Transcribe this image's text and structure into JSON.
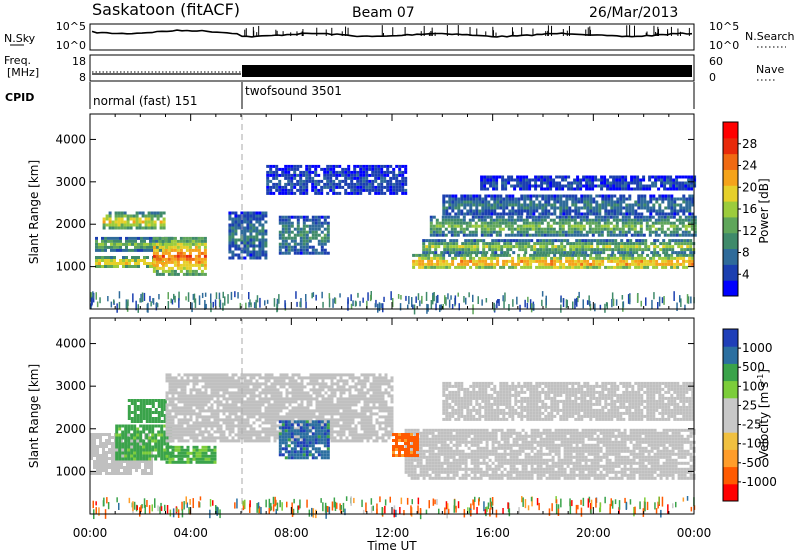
{
  "header": {
    "station": "Saskatoon (fitACF)",
    "beam": "Beam 07",
    "date": "26/Mar/2013"
  },
  "noise_panel": {
    "left_label": "N.Sky",
    "right_label": "N.Search",
    "left_ticks": [
      "10^5",
      "10^0"
    ],
    "right_ticks": [
      "10^5",
      "10^0"
    ]
  },
  "freq_panel": {
    "left_label_1": "Freq.",
    "left_label_2": "[MHz]",
    "left_ticks": [
      "18",
      "8"
    ],
    "right_label": "Nave",
    "right_ticks": [
      "60",
      "0"
    ]
  },
  "cpid_panel": {
    "label": "CPID",
    "modes": [
      {
        "name": "normal (fast) 151",
        "start_hour": 0,
        "end_hour": 6
      },
      {
        "name": "twofsound 3501",
        "start_hour": 6,
        "end_hour": 24
      }
    ]
  },
  "colors": {
    "power_scale": [
      "#0000ff",
      "#1b3fb0",
      "#2f6b9a",
      "#3f8a6a",
      "#5fa65a",
      "#9ccc3c",
      "#e6d02a",
      "#f5a31a",
      "#f06a12",
      "#e82a0a",
      "#ff0000"
    ],
    "velocity_scale": [
      "#ff0000",
      "#ff5a00",
      "#ff9d2a",
      "#f0c040",
      "#c8c8c8",
      "#c8c8c8",
      "#7ccd3a",
      "#3aa34a",
      "#2b6fa0",
      "#1f3fb8"
    ],
    "ground_scatter": "#c0c0c0"
  },
  "chart_data": [
    {
      "type": "heatmap",
      "name": "power",
      "ylabel": "Slant Range [km]",
      "yticks": [
        "1000",
        "2000",
        "3000",
        "4000"
      ],
      "ylim": [
        0,
        4600
      ],
      "xlim": [
        0,
        24
      ],
      "colorbar_label": "Power [dB]",
      "colorbar_ticks": [
        "4",
        "8",
        "12",
        "16",
        "20",
        "24",
        "28"
      ],
      "colorbar_range": [
        0,
        32
      ],
      "features": [
        {
          "t0": 0.2,
          "t1": 3.0,
          "r0": 1000,
          "r1": 1250,
          "value": 24
        },
        {
          "t0": 0.2,
          "t1": 3.2,
          "r0": 1400,
          "r1": 1700,
          "value": 16
        },
        {
          "t0": 0.5,
          "t1": 3.0,
          "r0": 1900,
          "r1": 2300,
          "value": 22
        },
        {
          "t0": 2.5,
          "t1": 4.6,
          "r0": 850,
          "r1": 1700,
          "value": 28
        },
        {
          "t0": 5.5,
          "t1": 7.0,
          "r0": 1200,
          "r1": 2300,
          "value": 10
        },
        {
          "t0": 7.0,
          "t1": 12.5,
          "r0": 2700,
          "r1": 3400,
          "value": 6
        },
        {
          "t0": 7.5,
          "t1": 9.5,
          "r0": 1300,
          "r1": 2200,
          "value": 12
        },
        {
          "t0": 12.8,
          "t1": 24.0,
          "r0": 950,
          "r1": 1300,
          "value": 26
        },
        {
          "t0": 13.2,
          "t1": 24.0,
          "r0": 1350,
          "r1": 1650,
          "value": 18
        },
        {
          "t0": 13.5,
          "t1": 24.0,
          "r0": 1750,
          "r1": 2200,
          "value": 16
        },
        {
          "t0": 14.0,
          "t1": 24.0,
          "r0": 2250,
          "r1": 2700,
          "value": 10
        },
        {
          "t0": 15.5,
          "t1": 24.0,
          "r0": 2850,
          "r1": 3150,
          "value": 6
        }
      ]
    },
    {
      "type": "heatmap",
      "name": "velocity",
      "ylabel": "Slant Range [km]",
      "yticks": [
        "1000",
        "2000",
        "3000",
        "4000"
      ],
      "ylim": [
        0,
        4600
      ],
      "xlim": [
        0,
        24
      ],
      "xlabel": "Time UT",
      "xticks": [
        "00:00",
        "04:00",
        "08:00",
        "12:00",
        "16:00",
        "20:00",
        "00:00"
      ],
      "colorbar_label": "Velocity [m s",
      "colorbar_label_sup": "-1",
      "colorbar_label_end": "]",
      "colorbar_ticks": [
        "1000",
        "500",
        "100",
        "25",
        "-25",
        "-100",
        "-500",
        "-1000"
      ],
      "features": [
        {
          "t0": 0.0,
          "t1": 2.5,
          "r0": 950,
          "r1": 1900,
          "value": 0,
          "kind": "ground"
        },
        {
          "t0": 1.0,
          "t1": 3.2,
          "r0": 1300,
          "r1": 2100,
          "value": 150
        },
        {
          "t0": 1.5,
          "t1": 3.0,
          "r0": 2200,
          "r1": 2700,
          "value": 200
        },
        {
          "t0": 3.0,
          "t1": 5.0,
          "r0": 1200,
          "r1": 1600,
          "value": 120
        },
        {
          "t0": 3.0,
          "t1": 12.0,
          "r0": 1700,
          "r1": 3300,
          "value": 0,
          "kind": "ground"
        },
        {
          "t0": 7.5,
          "t1": 9.5,
          "r0": 1300,
          "r1": 2200,
          "value": 800
        },
        {
          "t0": 12.5,
          "t1": 24.0,
          "r0": 850,
          "r1": 2000,
          "value": 0,
          "kind": "ground"
        },
        {
          "t0": 14.0,
          "t1": 24.0,
          "r0": 2200,
          "r1": 3100,
          "value": 0,
          "kind": "ground"
        },
        {
          "t0": 12.0,
          "t1": 13.0,
          "r0": 1400,
          "r1": 1900,
          "value": -150
        }
      ]
    }
  ]
}
